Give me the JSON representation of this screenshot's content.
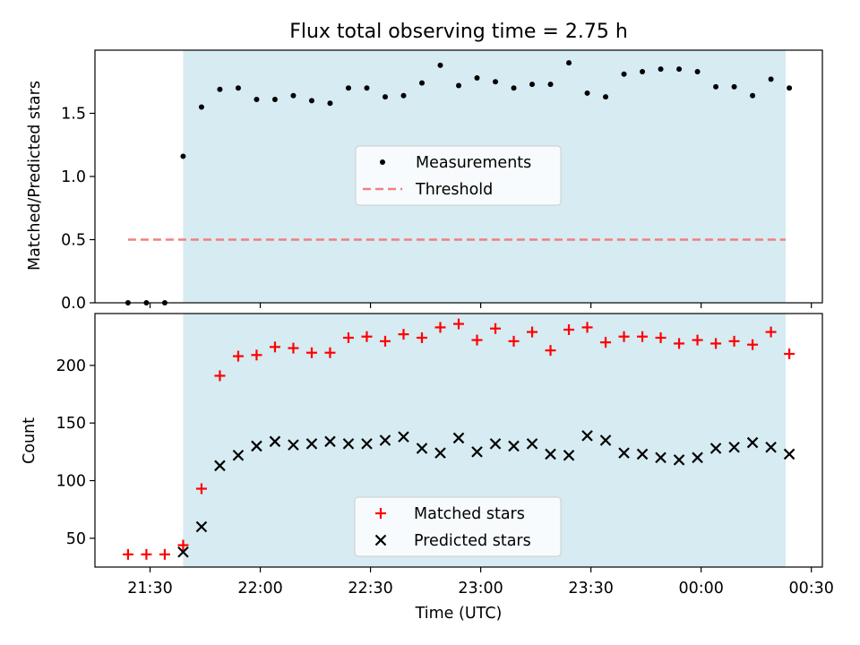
{
  "title": "Flux total observing time = 2.75 h",
  "colors": {
    "shade": "#add8e6",
    "measurements": "#000000",
    "threshold": "#f08080",
    "matched": "#ff0000",
    "predicted": "#000000"
  },
  "chart_data": [
    {
      "type": "scatter",
      "ylabel": "Matched/Predicted stars",
      "ylim": [
        0,
        2.0
      ],
      "yticks": [
        0.0,
        0.5,
        1.0,
        1.5
      ],
      "ytick_labels": [
        "0.0",
        "0.5",
        "1.0",
        "1.5"
      ],
      "legend": [
        "Measurements",
        "Threshold"
      ],
      "legend_position": "center",
      "threshold": 0.5,
      "threshold_x_range": [
        "21:24",
        "00:23"
      ],
      "shaded_x_range": [
        "21:39",
        "00:23"
      ],
      "x": [
        "21:24",
        "21:29",
        "21:34",
        "21:39",
        "21:44",
        "21:49",
        "21:54",
        "21:59",
        "22:04",
        "22:09",
        "22:14",
        "22:19",
        "22:24",
        "22:29",
        "22:34",
        "22:39",
        "22:44",
        "22:49",
        "22:54",
        "22:59",
        "23:04",
        "23:09",
        "23:14",
        "23:19",
        "23:24",
        "23:29",
        "23:34",
        "23:39",
        "23:44",
        "23:49",
        "23:54",
        "23:59",
        "00:04",
        "00:09",
        "00:14",
        "00:19",
        "00:24"
      ],
      "series": [
        {
          "name": "Measurements",
          "values": [
            0.0,
            0.0,
            0.0,
            1.16,
            1.55,
            1.69,
            1.7,
            1.61,
            1.61,
            1.64,
            1.6,
            1.58,
            1.7,
            1.7,
            1.63,
            1.64,
            1.74,
            1.88,
            1.72,
            1.78,
            1.75,
            1.7,
            1.73,
            1.73,
            1.9,
            1.66,
            1.63,
            1.81,
            1.83,
            1.85,
            1.85,
            1.83,
            1.71,
            1.71,
            1.64,
            1.77,
            1.7
          ]
        }
      ]
    },
    {
      "type": "scatter",
      "ylabel": "Count",
      "xlabel": "Time (UTC)",
      "ylim": [
        25,
        245
      ],
      "yticks": [
        50,
        100,
        150,
        200
      ],
      "ytick_labels": [
        "50",
        "100",
        "150",
        "200"
      ],
      "xticks": [
        "21:30",
        "22:00",
        "22:30",
        "23:00",
        "23:30",
        "00:00",
        "00:30"
      ],
      "x_start": "21:15",
      "x_end": "00:33",
      "legend": [
        "Matched stars",
        "Predicted stars"
      ],
      "legend_position": "lower center",
      "shaded_x_range": [
        "21:39",
        "00:23"
      ],
      "x": [
        "21:24",
        "21:29",
        "21:34",
        "21:39",
        "21:44",
        "21:49",
        "21:54",
        "21:59",
        "22:04",
        "22:09",
        "22:14",
        "22:19",
        "22:24",
        "22:29",
        "22:34",
        "22:39",
        "22:44",
        "22:49",
        "22:54",
        "22:59",
        "23:04",
        "23:09",
        "23:14",
        "23:19",
        "23:24",
        "23:29",
        "23:34",
        "23:39",
        "23:44",
        "23:49",
        "23:54",
        "23:59",
        "00:04",
        "00:09",
        "00:14",
        "00:19",
        "00:24"
      ],
      "series": [
        {
          "name": "Matched stars",
          "values": [
            36,
            36,
            36,
            44,
            93,
            191,
            208,
            209,
            216,
            215,
            211,
            211,
            224,
            225,
            221,
            227,
            224,
            233,
            236,
            222,
            232,
            221,
            229,
            213,
            231,
            233,
            220,
            225,
            225,
            224,
            219,
            222,
            219,
            221,
            218,
            229,
            210
          ]
        },
        {
          "name": "Predicted stars",
          "values": [
            null,
            null,
            null,
            38,
            60,
            113,
            122,
            130,
            134,
            131,
            132,
            134,
            132,
            132,
            135,
            138,
            128,
            124,
            137,
            125,
            132,
            130,
            132,
            123,
            122,
            139,
            135,
            124,
            123,
            120,
            118,
            120,
            128,
            129,
            133,
            129,
            123
          ]
        }
      ]
    }
  ]
}
